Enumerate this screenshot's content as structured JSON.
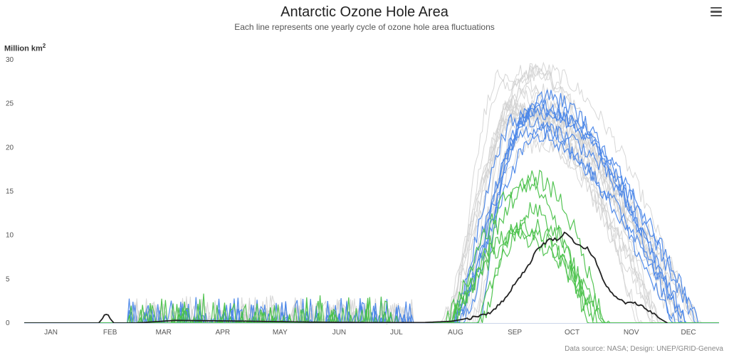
{
  "header": {
    "title": "Antarctic Ozone Hole Area",
    "subtitle": "Each line represents one yearly cycle of ozone hole area fluctuations",
    "menu_icon": "hamburger-menu-icon"
  },
  "credits": "Data source: NASA; Design: UNEP/GRID-Geneva",
  "colors": {
    "gray": "#d0d0d0",
    "blue": "#4a86e8",
    "green": "#4cc24c",
    "black": "#222222"
  },
  "chart_data": {
    "type": "line",
    "title": "Antarctic Ozone Hole Area",
    "subtitle": "Each line represents one yearly cycle of ozone hole area fluctuations",
    "ylabel": "Million km",
    "ylabel_superscript": "2",
    "ylim": [
      0,
      30
    ],
    "yticks": [
      0,
      5,
      10,
      15,
      20,
      25,
      30
    ],
    "xlim": [
      1,
      365
    ],
    "xticks": [
      {
        "label": "JAN",
        "day": 15
      },
      {
        "label": "FEB",
        "day": 46
      },
      {
        "label": "MAR",
        "day": 74
      },
      {
        "label": "APR",
        "day": 105
      },
      {
        "label": "MAY",
        "day": 135
      },
      {
        "label": "JUN",
        "day": 166
      },
      {
        "label": "JUL",
        "day": 196
      },
      {
        "label": "AUG",
        "day": 227
      },
      {
        "label": "SEP",
        "day": 258
      },
      {
        "label": "OCT",
        "day": 288
      },
      {
        "label": "NOV",
        "day": 319
      },
      {
        "label": "DEC",
        "day": 349
      }
    ],
    "grid": false,
    "legend": "none",
    "series_groups": [
      {
        "group": "gray",
        "count": 18,
        "approx_peak_range": [
          20,
          29
        ],
        "approx_peak_day_range": [
          250,
          275
        ],
        "approx_end_day_range": [
          320,
          360
        ]
      },
      {
        "group": "blue",
        "count": 7,
        "approx_peak_range": [
          19,
          26
        ],
        "approx_peak_day_range": [
          255,
          275
        ],
        "approx_end_day_range": [
          340,
          362
        ]
      },
      {
        "group": "green",
        "count": 6,
        "approx_peak_range": [
          5,
          19
        ],
        "approx_peak_day_range": [
          255,
          275
        ],
        "approx_end_day_range": [
          295,
          320
        ]
      }
    ],
    "highlight_series": {
      "group": "black",
      "points": [
        [
          1,
          0
        ],
        [
          40,
          0
        ],
        [
          44,
          1.0
        ],
        [
          48,
          0
        ],
        [
          60,
          0
        ],
        [
          80,
          0.3
        ],
        [
          120,
          0.2
        ],
        [
          150,
          0.1
        ],
        [
          180,
          0.05
        ],
        [
          210,
          0.05
        ],
        [
          225,
          0.2
        ],
        [
          235,
          0.6
        ],
        [
          245,
          1.2
        ],
        [
          252,
          2.5
        ],
        [
          258,
          4.5
        ],
        [
          265,
          6.5
        ],
        [
          270,
          8.5
        ],
        [
          276,
          9.5
        ],
        [
          282,
          9.6
        ],
        [
          284,
          10.5
        ],
        [
          288,
          9.5
        ],
        [
          292,
          8.8
        ],
        [
          296,
          8.5
        ],
        [
          300,
          7.2
        ],
        [
          304,
          5.0
        ],
        [
          310,
          3.0
        ],
        [
          316,
          2.3
        ],
        [
          322,
          2.2
        ],
        [
          328,
          1.5
        ],
        [
          334,
          0.5
        ],
        [
          338,
          0
        ]
      ]
    }
  }
}
